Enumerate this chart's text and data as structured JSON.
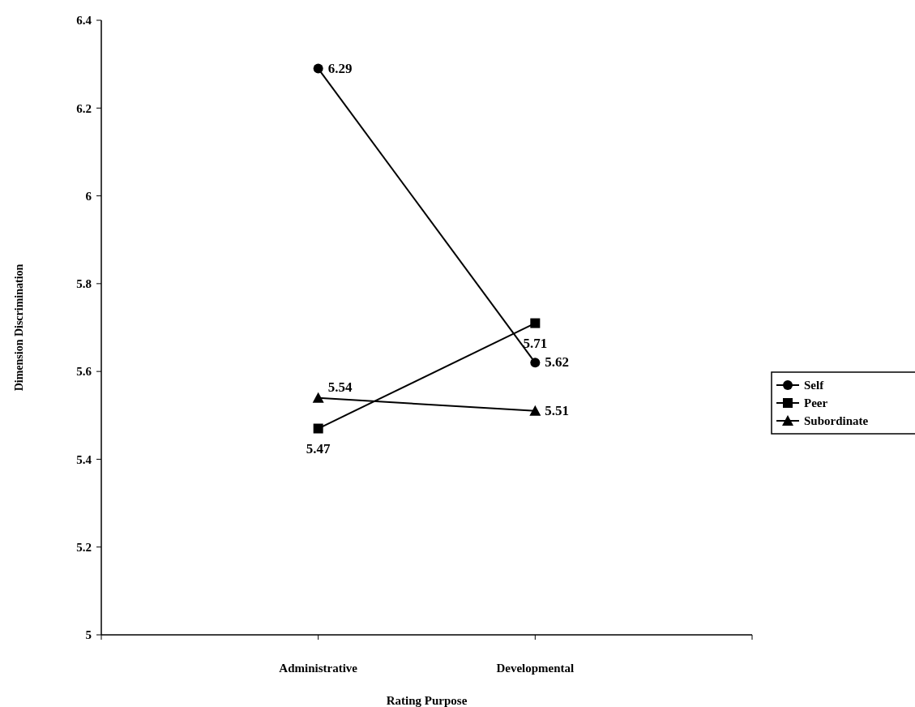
{
  "chart_data": {
    "type": "line",
    "xlabel": "Rating Purpose",
    "ylabel": "Dimension Discrimination",
    "categories": [
      "Administrative",
      "Developmental"
    ],
    "series": [
      {
        "name": "Self",
        "color": "#000000",
        "marker": "circle",
        "values": [
          6.29,
          5.62
        ]
      },
      {
        "name": "Peer",
        "color": "#000000",
        "marker": "square",
        "values": [
          5.47,
          5.71
        ]
      },
      {
        "name": "Subordinate",
        "color": "#000000",
        "marker": "triangle",
        "values": [
          5.54,
          5.51
        ]
      }
    ],
    "ylim": [
      5,
      6.4
    ],
    "yticks": [
      5,
      5.2,
      5.4,
      5.6,
      5.8,
      6,
      6.2,
      6.4
    ],
    "data_labels": true,
    "legend": "right",
    "grid": false
  }
}
